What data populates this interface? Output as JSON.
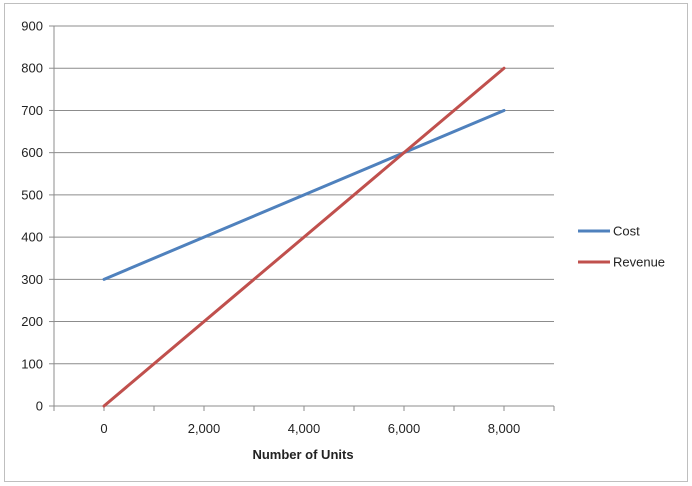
{
  "chart_data": {
    "type": "line",
    "title": "",
    "xlabel": "Number of Units",
    "ylabel": "",
    "x": [
      0,
      8000
    ],
    "series": [
      {
        "name": "Cost",
        "color": "#4f81bd",
        "values": [
          300,
          700
        ]
      },
      {
        "name": "Revenue",
        "color": "#c0504d",
        "values": [
          0,
          800
        ]
      }
    ],
    "xlim": [
      -1000,
      9000
    ],
    "ylim": [
      0,
      900
    ],
    "xticks": [
      0,
      2000,
      4000,
      6000,
      8000
    ],
    "xtick_labels": [
      "0",
      "2,000",
      "4,000",
      "6,000",
      "8,000"
    ],
    "yticks": [
      0,
      100,
      200,
      300,
      400,
      500,
      600,
      700,
      800,
      900
    ],
    "ytick_labels": [
      "0",
      "100",
      "200",
      "300",
      "400",
      "500",
      "600",
      "700",
      "800",
      "900"
    ],
    "grid": "horizontal",
    "legend_position": "right",
    "gridline_color": "#8c8c8c",
    "axis_color": "#8c8c8c"
  }
}
